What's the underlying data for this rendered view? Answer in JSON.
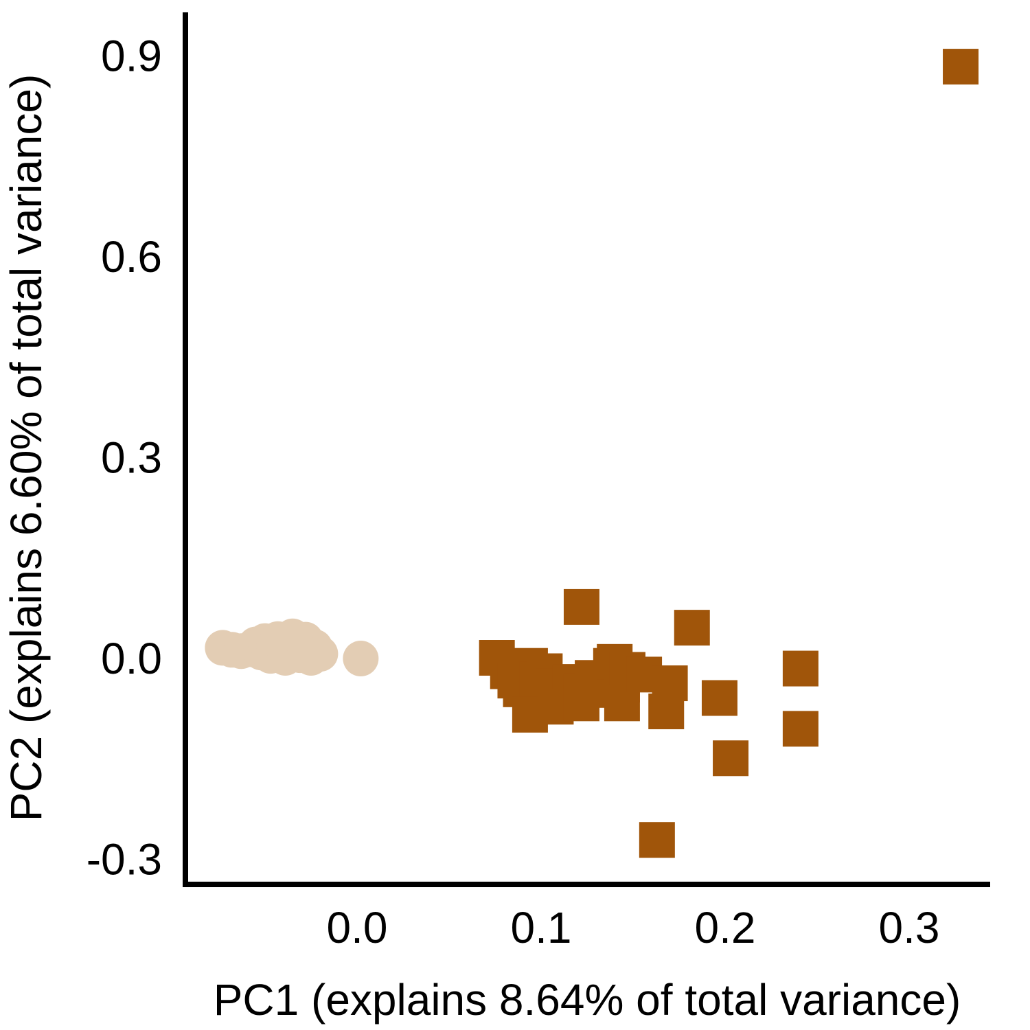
{
  "chart_data": {
    "type": "scatter",
    "xlabel": "PC1 (explains 8.64% of total variance)",
    "ylabel": "PC2 (explains 6.60% of total variance)",
    "xlim": [
      -0.095,
      0.35
    ],
    "ylim": [
      -0.33,
      0.94
    ],
    "xticks": [
      {
        "value": 0.0,
        "label": "0.0"
      },
      {
        "value": 0.1,
        "label": "0.1"
      },
      {
        "value": 0.2,
        "label": "0.2"
      },
      {
        "value": 0.3,
        "label": "0.3"
      }
    ],
    "yticks": [
      {
        "value": -0.3,
        "label": "-0.3"
      },
      {
        "value": 0.0,
        "label": "0.0"
      },
      {
        "value": 0.3,
        "label": "0.3"
      },
      {
        "value": 0.6,
        "label": "0.6"
      },
      {
        "value": 0.9,
        "label": "0.9"
      }
    ],
    "grid": false,
    "legend": "none",
    "series": [
      {
        "marker": "circle",
        "color": "#E3CDB4",
        "points": [
          [
            -0.073,
            0.015
          ],
          [
            -0.068,
            0.012
          ],
          [
            -0.063,
            0.01
          ],
          [
            -0.058,
            0.013
          ],
          [
            -0.055,
            0.02
          ],
          [
            -0.052,
            0.008
          ],
          [
            -0.05,
            0.025
          ],
          [
            -0.047,
            0.003
          ],
          [
            -0.045,
            0.018
          ],
          [
            -0.043,
            0.028
          ],
          [
            -0.041,
            0.01
          ],
          [
            -0.039,
            0.0
          ],
          [
            -0.037,
            0.02
          ],
          [
            -0.035,
            0.032
          ],
          [
            -0.033,
            0.012
          ],
          [
            -0.031,
            0.004
          ],
          [
            -0.029,
            0.022
          ],
          [
            -0.028,
            0.027
          ],
          [
            -0.026,
            0.012
          ],
          [
            -0.025,
            0.0
          ],
          [
            -0.023,
            0.016
          ],
          [
            -0.02,
            0.006
          ],
          [
            0.002,
            -0.001
          ]
        ]
      },
      {
        "marker": "square",
        "color": "#A0550A",
        "points": [
          [
            0.328,
            0.883
          ],
          [
            0.122,
            0.076
          ],
          [
            0.182,
            0.045
          ],
          [
            0.076,
            0.0
          ],
          [
            0.082,
            -0.02
          ],
          [
            0.086,
            -0.034
          ],
          [
            0.089,
            -0.047
          ],
          [
            0.094,
            -0.012
          ],
          [
            0.098,
            -0.032
          ],
          [
            0.102,
            -0.02
          ],
          [
            0.107,
            -0.043
          ],
          [
            0.112,
            -0.06
          ],
          [
            0.116,
            -0.036
          ],
          [
            0.122,
            -0.05
          ],
          [
            0.128,
            -0.03
          ],
          [
            0.134,
            -0.048
          ],
          [
            0.138,
            -0.012
          ],
          [
            0.14,
            -0.006
          ],
          [
            0.144,
            -0.04
          ],
          [
            0.147,
            -0.018
          ],
          [
            0.094,
            -0.085
          ],
          [
            0.108,
            -0.073
          ],
          [
            0.122,
            -0.068
          ],
          [
            0.144,
            -0.068
          ],
          [
            0.156,
            -0.025
          ],
          [
            0.17,
            -0.038
          ],
          [
            0.168,
            -0.08
          ],
          [
            0.197,
            -0.06
          ],
          [
            0.241,
            -0.016
          ],
          [
            0.241,
            -0.106
          ],
          [
            0.203,
            -0.15
          ],
          [
            0.163,
            -0.272
          ]
        ]
      }
    ]
  }
}
